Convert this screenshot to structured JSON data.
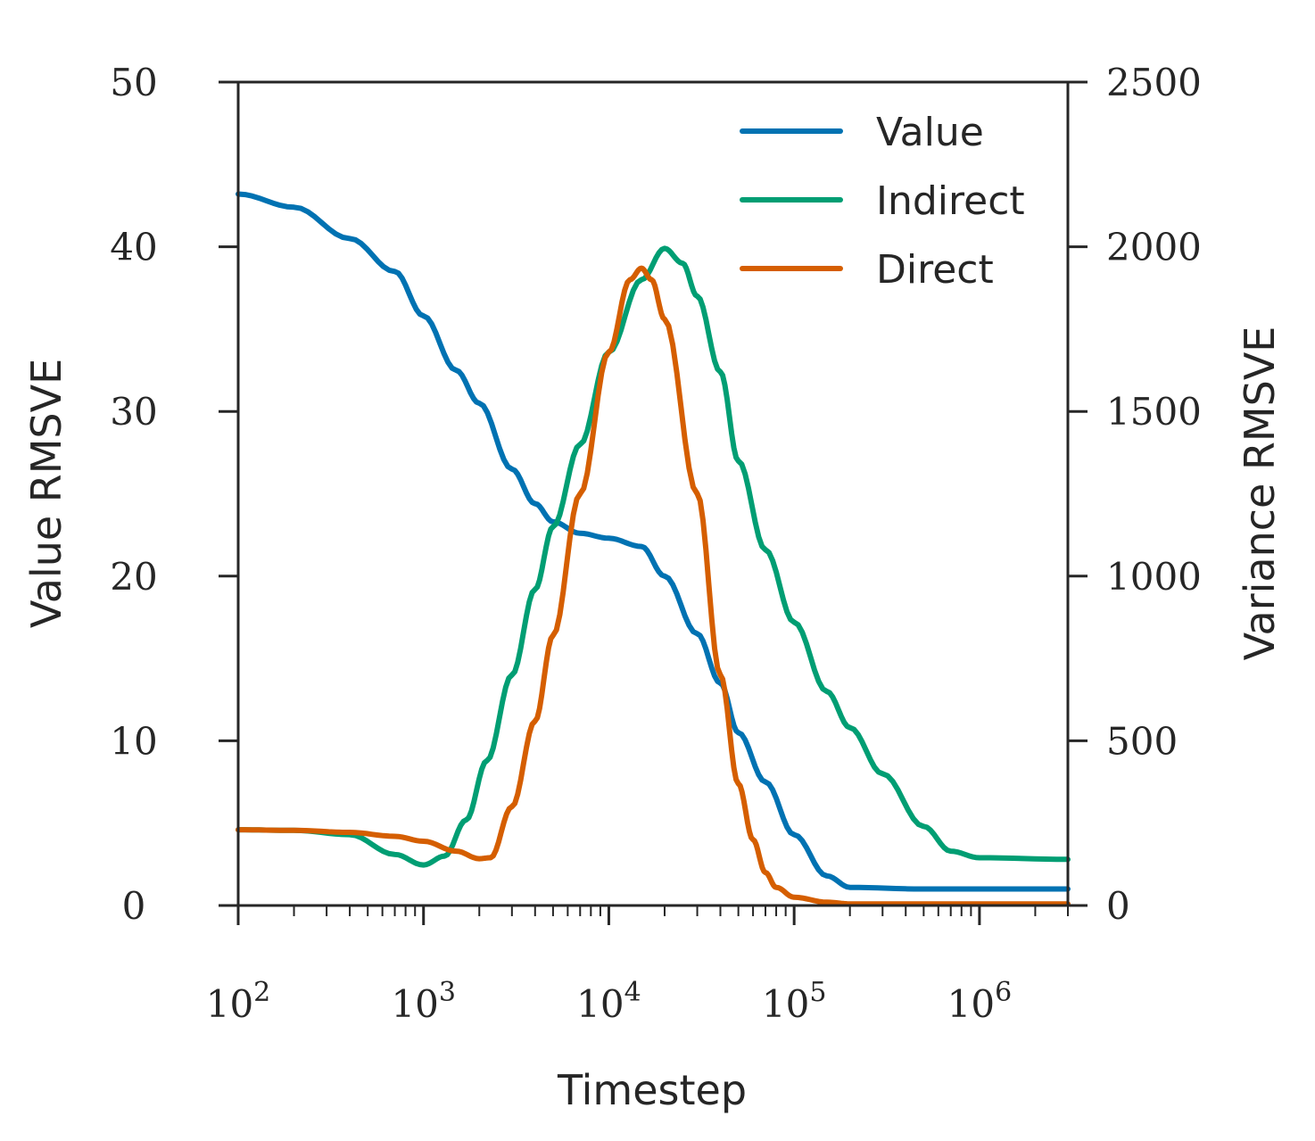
{
  "chart_data": {
    "type": "line",
    "xlabel": "Timestep",
    "ylabel_left": "Value RMSVE",
    "ylabel_right": "Variance RMSVE",
    "x_scale": "log",
    "xlim": [
      100,
      3000000
    ],
    "ylim_left": [
      0,
      50
    ],
    "ylim_right": [
      0,
      2500
    ],
    "x_ticks": [
      {
        "value": 100,
        "base": "10",
        "exp": "2"
      },
      {
        "value": 1000,
        "base": "10",
        "exp": "3"
      },
      {
        "value": 10000,
        "base": "10",
        "exp": "4"
      },
      {
        "value": 100000,
        "base": "10",
        "exp": "5"
      },
      {
        "value": 1000000,
        "base": "10",
        "exp": "6"
      }
    ],
    "y_ticks_left": [
      "0",
      "10",
      "20",
      "30",
      "40",
      "50"
    ],
    "y_ticks_right": [
      "0",
      "500",
      "1000",
      "1500",
      "2000",
      "2500"
    ],
    "legend_position": "top-right",
    "series": [
      {
        "name": "Value",
        "axis": "left",
        "color": "#0072b2",
        "x": [
          100,
          200,
          400,
          700,
          1000,
          1500,
          2000,
          3000,
          4000,
          5000,
          7000,
          10000,
          15000,
          20000,
          30000,
          40000,
          50000,
          70000,
          100000,
          150000,
          200000,
          500000,
          1000000,
          3000000
        ],
        "y": [
          43.2,
          42.4,
          40.5,
          38.5,
          35.8,
          32.5,
          30.5,
          26.5,
          24.4,
          23.3,
          22.6,
          22.3,
          21.8,
          20.0,
          16.5,
          13.5,
          10.5,
          7.5,
          4.3,
          1.8,
          1.1,
          1.0,
          1.0,
          1.0
        ]
      },
      {
        "name": "Indirect",
        "axis": "right",
        "color": "#009e73",
        "x": [
          100,
          200,
          400,
          700,
          1000,
          1300,
          1700,
          2200,
          3000,
          4000,
          5000,
          7000,
          10000,
          15000,
          20000,
          25000,
          30000,
          40000,
          50000,
          70000,
          100000,
          150000,
          200000,
          300000,
          500000,
          700000,
          1000000,
          3000000
        ],
        "y": [
          230,
          228,
          215,
          155,
          123,
          150,
          260,
          440,
          700,
          960,
          1150,
          1400,
          1680,
          1900,
          1995,
          1950,
          1850,
          1620,
          1350,
          1080,
          860,
          650,
          540,
          400,
          240,
          165,
          145,
          140
        ]
      },
      {
        "name": "Direct",
        "axis": "right",
        "color": "#d55e00",
        "x": [
          100,
          200,
          400,
          700,
          1000,
          1500,
          2000,
          2300,
          3000,
          4000,
          5000,
          7000,
          10000,
          13000,
          15000,
          17000,
          20000,
          30000,
          40000,
          50000,
          60000,
          70000,
          80000,
          100000,
          150000,
          200000,
          3000000
        ],
        "y": [
          230,
          228,
          222,
          210,
          195,
          165,
          142,
          145,
          300,
          560,
          820,
          1250,
          1680,
          1900,
          1935,
          1900,
          1780,
          1250,
          700,
          370,
          200,
          100,
          55,
          25,
          10,
          5,
          5
        ]
      }
    ]
  }
}
